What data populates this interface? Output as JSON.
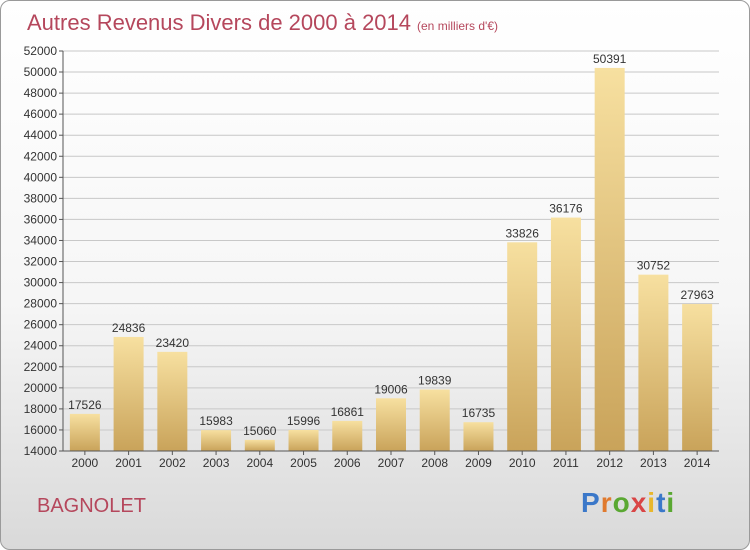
{
  "header": {
    "title": "Autres Revenus Divers de 2000 à 2014",
    "subtitle": "(en milliers d'€)"
  },
  "footer": {
    "place": "BAGNOLET",
    "logo": "Proxiti"
  },
  "colors": {
    "title": "#b5475c",
    "bar_light": "#f7e0a0",
    "bar_dark": "#c9a35a",
    "grid": "#c8c8c8"
  },
  "chart_data": {
    "type": "bar",
    "title": "Autres Revenus Divers de 2000 à 2014",
    "subtitle": "(en milliers d'€)",
    "categories": [
      "2000",
      "2001",
      "2002",
      "2003",
      "2004",
      "2005",
      "2006",
      "2007",
      "2008",
      "2009",
      "2010",
      "2011",
      "2012",
      "2013",
      "2014"
    ],
    "values": [
      17526,
      24836,
      23420,
      15983,
      15060,
      15996,
      16861,
      19006,
      19839,
      16735,
      33826,
      36176,
      50391,
      30752,
      27963
    ],
    "ylim": [
      14000,
      52000
    ],
    "ytick_step": 2000,
    "grid": true,
    "data_labels": true
  }
}
